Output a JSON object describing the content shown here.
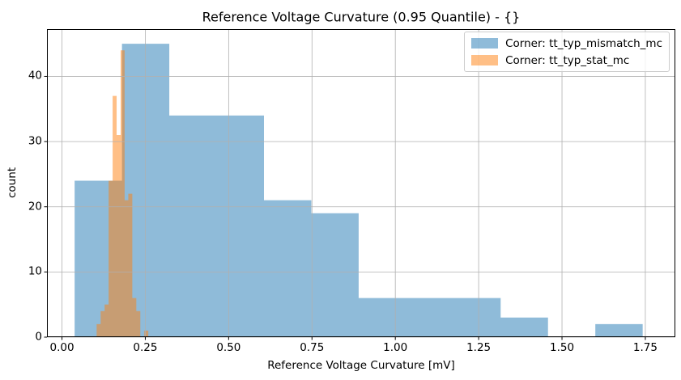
{
  "chart_data": {
    "type": "histogram",
    "title": "Reference Voltage Curvature (0.95 Quantile) - {}",
    "xlabel": "Reference Voltage Curvature [mV]",
    "ylabel": "count",
    "xlim": [
      -0.045,
      1.84
    ],
    "ylim": [
      0,
      47.25
    ],
    "x_ticks": [
      0,
      0.25,
      0.5,
      0.75,
      1.0,
      1.25,
      1.5,
      1.75
    ],
    "x_tick_labels": [
      "0.00",
      "0.25",
      "0.50",
      "0.75",
      "1.00",
      "1.25",
      "1.50",
      "1.75"
    ],
    "y_ticks": [
      0,
      10,
      20,
      30,
      40
    ],
    "y_tick_labels": [
      "0",
      "10",
      "20",
      "30",
      "40"
    ],
    "grid": true,
    "grid_color": "#b0b0b0",
    "axis_color": "#000000",
    "background": "#ffffff",
    "legend": {
      "position": "upper right"
    },
    "series": [
      {
        "name": "Corner: tt_typ_mismatch_mc",
        "color": "#1f77b4",
        "alpha": 0.5,
        "bin_edges": [
          0.038,
          0.18,
          0.322,
          0.464,
          0.606,
          0.748,
          0.89,
          1.032,
          1.174,
          1.316,
          1.458,
          1.6,
          1.742
        ],
        "counts": [
          24,
          45,
          34,
          34,
          21,
          19,
          6,
          6,
          6,
          3,
          0,
          2
        ]
      },
      {
        "name": "Corner: tt_typ_stat_mc",
        "color": "#ff7f0e",
        "alpha": 0.5,
        "bin_edges": [
          0.104,
          0.116,
          0.128,
          0.14,
          0.152,
          0.164,
          0.176,
          0.188,
          0.199,
          0.211,
          0.223,
          0.235,
          0.247,
          0.259
        ],
        "counts": [
          2,
          4,
          5,
          24,
          37,
          31,
          44,
          21,
          22,
          6,
          4,
          0,
          1
        ]
      }
    ]
  }
}
